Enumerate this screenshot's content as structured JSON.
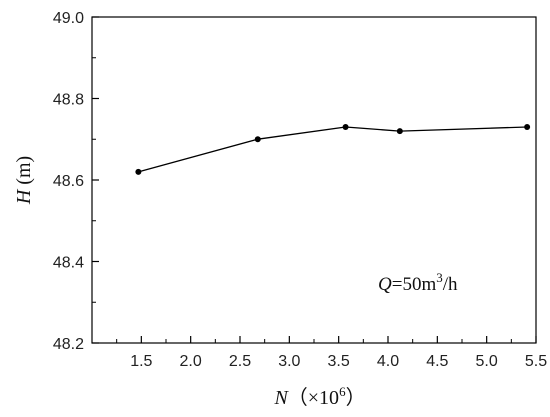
{
  "chart_data": {
    "type": "line",
    "x": [
      1.47,
      2.68,
      3.57,
      4.12,
      5.41
    ],
    "series": [
      {
        "values": [
          48.62,
          48.7,
          48.73,
          48.72,
          48.73
        ]
      }
    ],
    "xlim": [
      1.0,
      5.5
    ],
    "ylim": [
      48.2,
      49.0
    ],
    "xticks": [
      "1.5",
      "2.0",
      "2.5",
      "3.0",
      "3.5",
      "4.0",
      "4.5",
      "5.0",
      "5.5"
    ],
    "xtick_values": [
      1.5,
      2.0,
      2.5,
      3.0,
      3.5,
      4.0,
      4.5,
      5.0,
      5.5
    ],
    "yticks": [
      "48.2",
      "48.4",
      "48.6",
      "48.8",
      "49.0"
    ],
    "ytick_values": [
      48.2,
      48.4,
      48.6,
      48.8,
      49.0
    ],
    "xlabel": {
      "var": "N",
      "unit_open": "（×10",
      "unit_exp": "6",
      "unit_close": "）"
    },
    "ylabel": {
      "var": "H",
      "unit": " (m)"
    },
    "annotation": {
      "var": "Q",
      "eq": "=50m",
      "exp": "3",
      "tail": "/h"
    },
    "grid": false,
    "line_color": "#000000",
    "marker": "filled-circle"
  }
}
